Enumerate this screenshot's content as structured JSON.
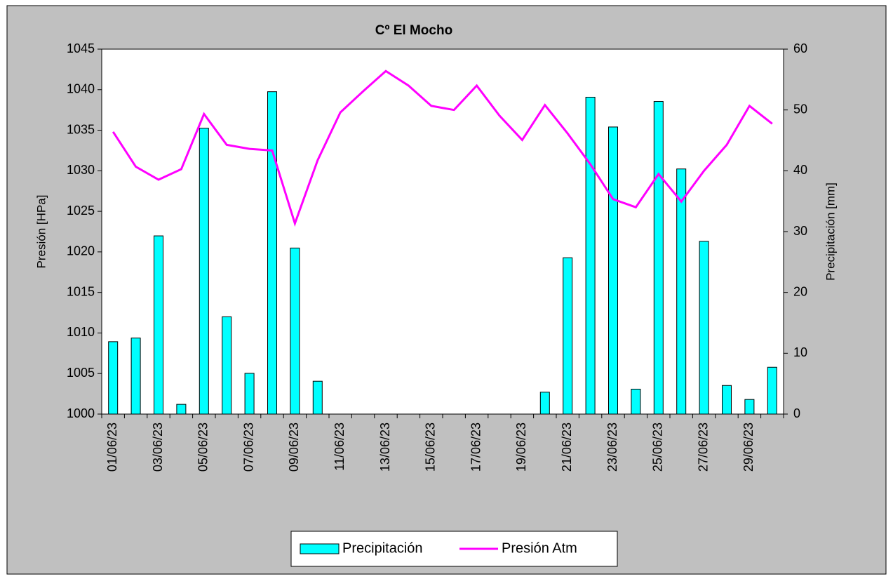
{
  "chart_data": {
    "type": "bar-line",
    "title": "Cº El Mocho",
    "ylabel": "Presión [HPa]",
    "y2label": "Precipitación [mm]",
    "categories": [
      "01/06/23",
      null,
      "03/06/23",
      null,
      "05/06/23",
      null,
      "07/06/23",
      null,
      "09/06/23",
      null,
      "11/06/23",
      null,
      "13/06/23",
      null,
      "15/06/23",
      null,
      "17/06/23",
      null,
      "19/06/23",
      null,
      "21/06/23",
      null,
      "23/06/23",
      null,
      "25/06/23",
      null,
      "27/06/23",
      null,
      "29/06/23",
      null
    ],
    "series": [
      {
        "name": "Precipitación",
        "type": "bar",
        "axis": "y2",
        "color": "#00ffff",
        "values": [
          11.9,
          12.5,
          29.3,
          1.6,
          47,
          16,
          6.7,
          53,
          27.3,
          5.4,
          0,
          0,
          0,
          0,
          0,
          0,
          0,
          0,
          0,
          3.6,
          25.7,
          52.1,
          47.2,
          4.1,
          51.4,
          40.3,
          28.4,
          4.7,
          2.4,
          7.7
        ]
      },
      {
        "name": "Presión Atm",
        "type": "line",
        "axis": "y",
        "color": "#ff00ff",
        "values": [
          1034.8,
          1030.5,
          1028.9,
          1030.2,
          1037,
          1033.2,
          1032.7,
          1032.5,
          1023.5,
          1031.3,
          1037.2,
          1039.8,
          1042.3,
          1040.5,
          1038,
          1037.5,
          1040.5,
          1036.8,
          1033.8,
          1038.1,
          1034.6,
          1030.8,
          1026.5,
          1025.5,
          1029.6,
          1026.2,
          1030,
          1033.2,
          1038,
          1035.8
        ]
      }
    ],
    "ylim": [
      1000,
      1045
    ],
    "yticks": [
      1000,
      1005,
      1010,
      1015,
      1020,
      1025,
      1030,
      1035,
      1040,
      1045
    ],
    "y2lim": [
      0,
      60
    ],
    "y2ticks": [
      0,
      10,
      20,
      30,
      40,
      50,
      60
    ],
    "grid": false,
    "legend": "bottom"
  }
}
